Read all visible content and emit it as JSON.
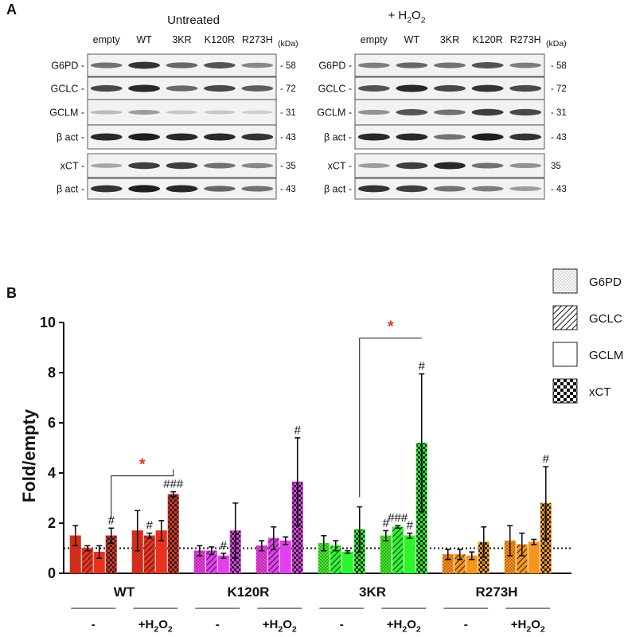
{
  "panel_a": {
    "letter": "A",
    "untreated_title": "Untreated",
    "h2o2_title_prefix": "+ H",
    "h2o2_sub": "2",
    "h2o2_title_suffix": "O",
    "h2o2_sub2": "2",
    "lane_labels": [
      "empty",
      "WT",
      "3KR",
      "K120R",
      "R273H"
    ],
    "kda_label": "(kDa)",
    "blot_rows": [
      {
        "name": "G6PD -",
        "mw": "- 58",
        "mw_right": "- 58"
      },
      {
        "name": "GCLC -",
        "mw": "- 72",
        "mw_right": "- 72"
      },
      {
        "name": "GCLM -",
        "mw": "- 31",
        "mw_right": "- 31"
      },
      {
        "name": "β act -",
        "mw": "- 43",
        "mw_right": "- 43"
      },
      {
        "name": "xCT -",
        "mw": "- 35",
        "mw_right": "35"
      },
      {
        "name": "β act -",
        "mw": "- 43",
        "mw_right": "- 43"
      }
    ],
    "intensities_untreated": [
      [
        0.55,
        0.85,
        0.6,
        0.7,
        0.45
      ],
      [
        0.75,
        0.9,
        0.6,
        0.75,
        0.65
      ],
      [
        0.2,
        0.35,
        0.15,
        0.15,
        0.12
      ],
      [
        0.9,
        0.95,
        0.9,
        0.9,
        0.85
      ],
      [
        0.3,
        0.8,
        0.8,
        0.55,
        0.45
      ],
      [
        0.85,
        0.95,
        0.9,
        0.6,
        0.55
      ]
    ],
    "intensities_h2o2": [
      [
        0.5,
        0.6,
        0.55,
        0.7,
        0.5
      ],
      [
        0.7,
        0.9,
        0.75,
        0.85,
        0.75
      ],
      [
        0.4,
        0.7,
        0.55,
        0.8,
        0.75
      ],
      [
        0.9,
        0.9,
        0.55,
        0.95,
        0.85
      ],
      [
        0.35,
        0.8,
        0.9,
        0.55,
        0.4
      ],
      [
        0.85,
        0.8,
        0.55,
        0.5,
        0.35
      ]
    ]
  },
  "panel_b_letter": "B",
  "colors": {
    "WT": "#e8321e",
    "K120R": "#e43ef0",
    "3KR": "#2cf52c",
    "R273H": "#f5961e",
    "significance": "#e8321e"
  },
  "chart_data": {
    "type": "bar",
    "ylabel": "Fold/empty",
    "ylim": [
      0,
      10
    ],
    "yticks": [
      "0",
      "2",
      "4",
      "6",
      "8",
      "10"
    ],
    "baseline": 1,
    "legend": {
      "placement": "top-right",
      "entries": [
        {
          "name": "G6PD",
          "pattern": "dots"
        },
        {
          "name": "GCLC",
          "pattern": "hatch"
        },
        {
          "name": "GCLM",
          "pattern": "solid"
        },
        {
          "name": "xCT",
          "pattern": "checker"
        }
      ]
    },
    "groups": [
      {
        "name": "WT",
        "color_key": "WT",
        "conditions": [
          {
            "label": "-",
            "values": [
              1.5,
              1.0,
              0.85,
              1.5
            ],
            "errors": [
              0.4,
              0.1,
              0.25,
              0.3
            ],
            "annotations": [
              "",
              "",
              "",
              "#"
            ]
          },
          {
            "label_main": "+H",
            "label_sub": "2",
            "label_mid": "O",
            "label_sub2": "2",
            "values": [
              1.7,
              1.5,
              1.7,
              3.15
            ],
            "errors": [
              0.8,
              0.1,
              0.4,
              0.1
            ],
            "annotations": [
              "",
              "#",
              "",
              "###"
            ]
          }
        ]
      },
      {
        "name": "K120R",
        "color_key": "K120R",
        "conditions": [
          {
            "label": "-",
            "values": [
              0.9,
              0.9,
              0.7,
              1.7
            ],
            "errors": [
              0.2,
              0.15,
              0.1,
              1.1
            ],
            "annotations": [
              "",
              "",
              "#",
              ""
            ]
          },
          {
            "label_main": "+H",
            "label_sub": "2",
            "label_mid": "O",
            "label_sub2": "2",
            "values": [
              1.1,
              1.4,
              1.3,
              3.65
            ],
            "errors": [
              0.2,
              0.45,
              0.15,
              1.75
            ],
            "annotations": [
              "",
              "",
              "",
              "#"
            ]
          }
        ]
      },
      {
        "name": "3KR",
        "color_key": "3KR",
        "conditions": [
          {
            "label": "-",
            "values": [
              1.2,
              1.1,
              0.85,
              1.75
            ],
            "errors": [
              0.3,
              0.2,
              0.05,
              0.9
            ],
            "annotations": [
              "",
              "",
              "",
              ""
            ]
          },
          {
            "label_main": "+H",
            "label_sub": "2",
            "label_mid": "O",
            "label_sub2": "2",
            "values": [
              1.5,
              1.85,
              1.5,
              5.2
            ],
            "errors": [
              0.2,
              0.05,
              0.1,
              2.75
            ],
            "annotations": [
              "#",
              "###",
              "#",
              "#"
            ]
          }
        ]
      },
      {
        "name": "R273H",
        "color_key": "R273H",
        "conditions": [
          {
            "label": "-",
            "values": [
              0.75,
              0.75,
              0.7,
              1.25
            ],
            "errors": [
              0.2,
              0.2,
              0.15,
              0.6
            ],
            "annotations": [
              "",
              "",
              "",
              ""
            ]
          },
          {
            "label_main": "+H",
            "label_sub": "2",
            "label_mid": "O",
            "label_sub2": "2",
            "values": [
              1.3,
              1.15,
              1.25,
              2.8
            ],
            "errors": [
              0.6,
              0.45,
              0.1,
              1.45
            ],
            "annotations": [
              "",
              "",
              "",
              "#"
            ]
          }
        ]
      }
    ],
    "significance": [
      {
        "group": "WT",
        "from_condition": 0,
        "to_condition": 1,
        "symbol": "*"
      },
      {
        "group": "3KR",
        "from_condition": 0,
        "to_condition": 1,
        "symbol": "*"
      }
    ]
  }
}
